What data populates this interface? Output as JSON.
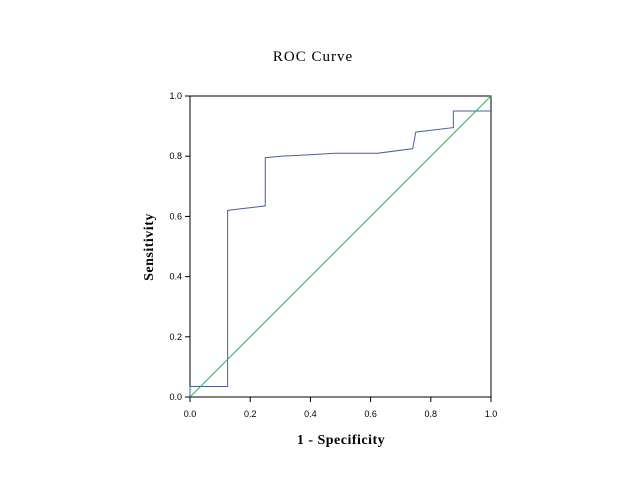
{
  "chart_data": {
    "type": "line",
    "title": "ROC Curve",
    "xlabel": "1 - Specificity",
    "ylabel": "Sensitivity",
    "xlim": [
      0.0,
      1.0
    ],
    "ylim": [
      0.0,
      1.0
    ],
    "x_ticks": [
      "0.0",
      "0.2",
      "0.4",
      "0.6",
      "0.8",
      "1.0"
    ],
    "y_ticks": [
      "0.0",
      "0.2",
      "0.4",
      "0.6",
      "0.8",
      "1.0"
    ],
    "grid": false,
    "legend": "none",
    "series": [
      {
        "color": "#4a5f9a",
        "style": "step",
        "x": [
          0.0,
          0.0,
          0.125,
          0.125,
          0.25,
          0.25,
          0.3,
          0.4,
          0.48,
          0.625,
          0.74,
          0.75,
          0.875,
          0.875,
          1.0
        ],
        "y": [
          0.0,
          0.035,
          0.035,
          0.62,
          0.635,
          0.795,
          0.8,
          0.805,
          0.81,
          0.81,
          0.825,
          0.88,
          0.895,
          0.95,
          0.95
        ]
      },
      {
        "color": "#3aa86a",
        "style": "reference",
        "x": [
          0.0,
          1.0
        ],
        "y": [
          0.0,
          1.0
        ]
      }
    ]
  }
}
